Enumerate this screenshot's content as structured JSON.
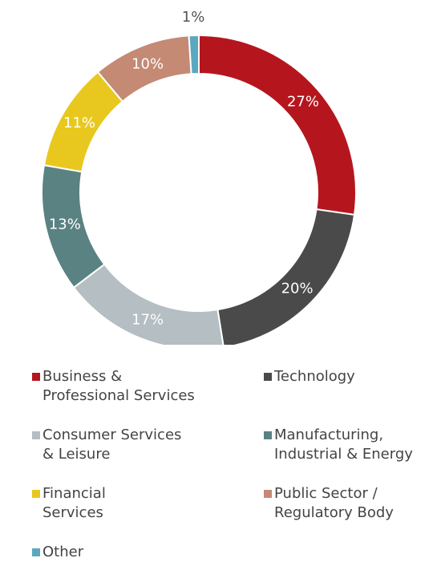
{
  "chart_data": {
    "type": "donut",
    "categories": [
      "Business &\nProfessional Services",
      "Technology",
      "Consumer Services\n& Leisure",
      "Manufacturing,\nIndustrial & Energy",
      "Financial\nServices",
      "Public Sector /\nRegulatory Body",
      "Other"
    ],
    "values": [
      27,
      20,
      17,
      13,
      11,
      10,
      1
    ],
    "value_labels": [
      "27%",
      "20%",
      "17%",
      "13%",
      "11%",
      "10%",
      "1%"
    ],
    "colors": [
      "#b5161e",
      "#4a4a4a",
      "#b4bec3",
      "#5a8282",
      "#e8c81e",
      "#c48a74",
      "#5ba8c0"
    ],
    "legend": "bottom"
  }
}
